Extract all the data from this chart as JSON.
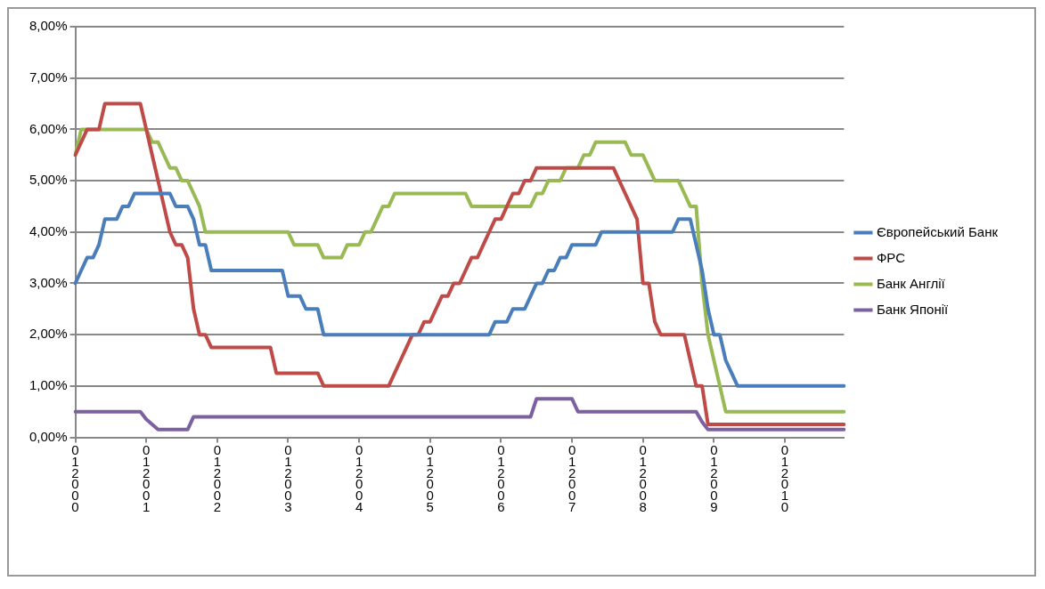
{
  "chart_data": {
    "type": "line",
    "categories": [
      "012000",
      null,
      null,
      null,
      null,
      null,
      null,
      null,
      null,
      null,
      null,
      null,
      "012001",
      null,
      null,
      null,
      null,
      null,
      null,
      null,
      null,
      null,
      null,
      null,
      "012002",
      null,
      null,
      null,
      null,
      null,
      null,
      null,
      null,
      null,
      null,
      null,
      "012003",
      null,
      null,
      null,
      null,
      null,
      null,
      null,
      null,
      null,
      null,
      null,
      "012004",
      null,
      null,
      null,
      null,
      null,
      null,
      null,
      null,
      null,
      null,
      null,
      "012005",
      null,
      null,
      null,
      null,
      null,
      null,
      null,
      null,
      null,
      null,
      null,
      "012006",
      null,
      null,
      null,
      null,
      null,
      null,
      null,
      null,
      null,
      null,
      null,
      "012007",
      null,
      null,
      null,
      null,
      null,
      null,
      null,
      null,
      null,
      null,
      null,
      "012008",
      null,
      null,
      null,
      null,
      null,
      null,
      null,
      null,
      null,
      null,
      null,
      "012009",
      null,
      null,
      null,
      null,
      null,
      null,
      null,
      null,
      null,
      null,
      null,
      "012010",
      null,
      null,
      null,
      null,
      null,
      null,
      null,
      null,
      null,
      null
    ],
    "ylim": [
      0,
      8
    ],
    "yticks": [
      {
        "value": 0,
        "label": "0,00%"
      },
      {
        "value": 1,
        "label": "1,00%"
      },
      {
        "value": 2,
        "label": "2,00%"
      },
      {
        "value": 3,
        "label": "3,00%"
      },
      {
        "value": 4,
        "label": "4,00%"
      },
      {
        "value": 5,
        "label": "5,00%"
      },
      {
        "value": 6,
        "label": "6,00%"
      },
      {
        "value": 7,
        "label": "7,00%"
      },
      {
        "value": 8,
        "label": "8,00%"
      }
    ],
    "grid": "y",
    "legend": "right",
    "marker": "none",
    "line_style": "solid",
    "series": [
      {
        "name": "Європейський Банк",
        "color": "#4a7ebb",
        "values": [
          3,
          3.25,
          3.5,
          3.5,
          3.75,
          4.25,
          4.25,
          4.25,
          4.5,
          4.5,
          4.75,
          4.75,
          4.75,
          4.75,
          4.75,
          4.75,
          4.75,
          4.5,
          4.5,
          4.5,
          4.25,
          3.75,
          3.75,
          3.25,
          3.25,
          3.25,
          3.25,
          3.25,
          3.25,
          3.25,
          3.25,
          3.25,
          3.25,
          3.25,
          3.25,
          3.25,
          2.75,
          2.75,
          2.75,
          2.5,
          2.5,
          2.5,
          2,
          2,
          2,
          2,
          2,
          2,
          2,
          2,
          2,
          2,
          2,
          2,
          2,
          2,
          2,
          2,
          2,
          2,
          2,
          2,
          2,
          2,
          2,
          2,
          2,
          2,
          2,
          2,
          2,
          2.25,
          2.25,
          2.25,
          2.5,
          2.5,
          2.5,
          2.75,
          3,
          3,
          3.25,
          3.25,
          3.5,
          3.5,
          3.75,
          3.75,
          3.75,
          3.75,
          3.75,
          4,
          4,
          4,
          4,
          4,
          4,
          4,
          4,
          4,
          4,
          4,
          4,
          4,
          4.25,
          4.25,
          4.25,
          3.75,
          3.25,
          2.5,
          2,
          2,
          1.5,
          1.25,
          1,
          1,
          1,
          1,
          1,
          1,
          1,
          1,
          1,
          1,
          1,
          1,
          1,
          1,
          1,
          1,
          1,
          1,
          1
        ]
      },
      {
        "name": "ФРС",
        "color": "#be4b48",
        "values": [
          5.5,
          5.75,
          6,
          6,
          6,
          6.5,
          6.5,
          6.5,
          6.5,
          6.5,
          6.5,
          6.5,
          6,
          5.5,
          5,
          4.5,
          4,
          3.75,
          3.75,
          3.5,
          2.5,
          2,
          2,
          1.75,
          1.75,
          1.75,
          1.75,
          1.75,
          1.75,
          1.75,
          1.75,
          1.75,
          1.75,
          1.75,
          1.25,
          1.25,
          1.25,
          1.25,
          1.25,
          1.25,
          1.25,
          1.25,
          1,
          1,
          1,
          1,
          1,
          1,
          1,
          1,
          1,
          1,
          1,
          1,
          1.25,
          1.5,
          1.75,
          2,
          2,
          2.25,
          2.25,
          2.5,
          2.75,
          2.75,
          3,
          3,
          3.25,
          3.5,
          3.5,
          3.75,
          4,
          4.25,
          4.25,
          4.5,
          4.75,
          4.75,
          5,
          5,
          5.25,
          5.25,
          5.25,
          5.25,
          5.25,
          5.25,
          5.25,
          5.25,
          5.25,
          5.25,
          5.25,
          5.25,
          5.25,
          5.25,
          5,
          4.75,
          4.5,
          4.25,
          3,
          3,
          2.25,
          2,
          2,
          2,
          2,
          2,
          1.5,
          1,
          1,
          0.25,
          0.25,
          0.25,
          0.25,
          0.25,
          0.25,
          0.25,
          0.25,
          0.25,
          0.25,
          0.25,
          0.25,
          0.25,
          0.25,
          0.25,
          0.25,
          0.25,
          0.25,
          0.25,
          0.25,
          0.25,
          0.25,
          0.25,
          0.25
        ]
      },
      {
        "name": "Банк Англії",
        "color": "#98b954",
        "values": [
          5.5,
          6,
          6,
          6,
          6,
          6,
          6,
          6,
          6,
          6,
          6,
          6,
          6,
          5.75,
          5.75,
          5.5,
          5.25,
          5.25,
          5,
          5,
          4.75,
          4.5,
          4,
          4,
          4,
          4,
          4,
          4,
          4,
          4,
          4,
          4,
          4,
          4,
          4,
          4,
          4,
          3.75,
          3.75,
          3.75,
          3.75,
          3.75,
          3.5,
          3.5,
          3.5,
          3.5,
          3.75,
          3.75,
          3.75,
          4,
          4,
          4.25,
          4.5,
          4.5,
          4.75,
          4.75,
          4.75,
          4.75,
          4.75,
          4.75,
          4.75,
          4.75,
          4.75,
          4.75,
          4.75,
          4.75,
          4.75,
          4.5,
          4.5,
          4.5,
          4.5,
          4.5,
          4.5,
          4.5,
          4.5,
          4.5,
          4.5,
          4.5,
          4.75,
          4.75,
          5,
          5,
          5,
          5.25,
          5.25,
          5.25,
          5.5,
          5.5,
          5.75,
          5.75,
          5.75,
          5.75,
          5.75,
          5.75,
          5.5,
          5.5,
          5.5,
          5.25,
          5,
          5,
          5,
          5,
          5,
          4.75,
          4.5,
          4.5,
          3,
          2,
          1.5,
          1,
          0.5,
          0.5,
          0.5,
          0.5,
          0.5,
          0.5,
          0.5,
          0.5,
          0.5,
          0.5,
          0.5,
          0.5,
          0.5,
          0.5,
          0.5,
          0.5,
          0.5,
          0.5,
          0.5,
          0.5,
          0.5
        ]
      },
      {
        "name": "Банк Японії",
        "color": "#7d60a0",
        "values": [
          0.5,
          0.5,
          0.5,
          0.5,
          0.5,
          0.5,
          0.5,
          0.5,
          0.5,
          0.5,
          0.5,
          0.5,
          0.35,
          0.25,
          0.15,
          0.15,
          0.15,
          0.15,
          0.15,
          0.15,
          0.4,
          0.4,
          0.4,
          0.4,
          0.4,
          0.4,
          0.4,
          0.4,
          0.4,
          0.4,
          0.4,
          0.4,
          0.4,
          0.4,
          0.4,
          0.4,
          0.4,
          0.4,
          0.4,
          0.4,
          0.4,
          0.4,
          0.4,
          0.4,
          0.4,
          0.4,
          0.4,
          0.4,
          0.4,
          0.4,
          0.4,
          0.4,
          0.4,
          0.4,
          0.4,
          0.4,
          0.4,
          0.4,
          0.4,
          0.4,
          0.4,
          0.4,
          0.4,
          0.4,
          0.4,
          0.4,
          0.4,
          0.4,
          0.4,
          0.4,
          0.4,
          0.4,
          0.4,
          0.4,
          0.4,
          0.4,
          0.4,
          0.4,
          0.75,
          0.75,
          0.75,
          0.75,
          0.75,
          0.75,
          0.75,
          0.5,
          0.5,
          0.5,
          0.5,
          0.5,
          0.5,
          0.5,
          0.5,
          0.5,
          0.5,
          0.5,
          0.5,
          0.5,
          0.5,
          0.5,
          0.5,
          0.5,
          0.5,
          0.5,
          0.5,
          0.5,
          0.3,
          0.15,
          0.15,
          0.15,
          0.15,
          0.15,
          0.15,
          0.15,
          0.15,
          0.15,
          0.15,
          0.15,
          0.15,
          0.15,
          0.15,
          0.15,
          0.15,
          0.15,
          0.15,
          0.15,
          0.15,
          0.15,
          0.15,
          0.15,
          0.15
        ]
      }
    ]
  }
}
